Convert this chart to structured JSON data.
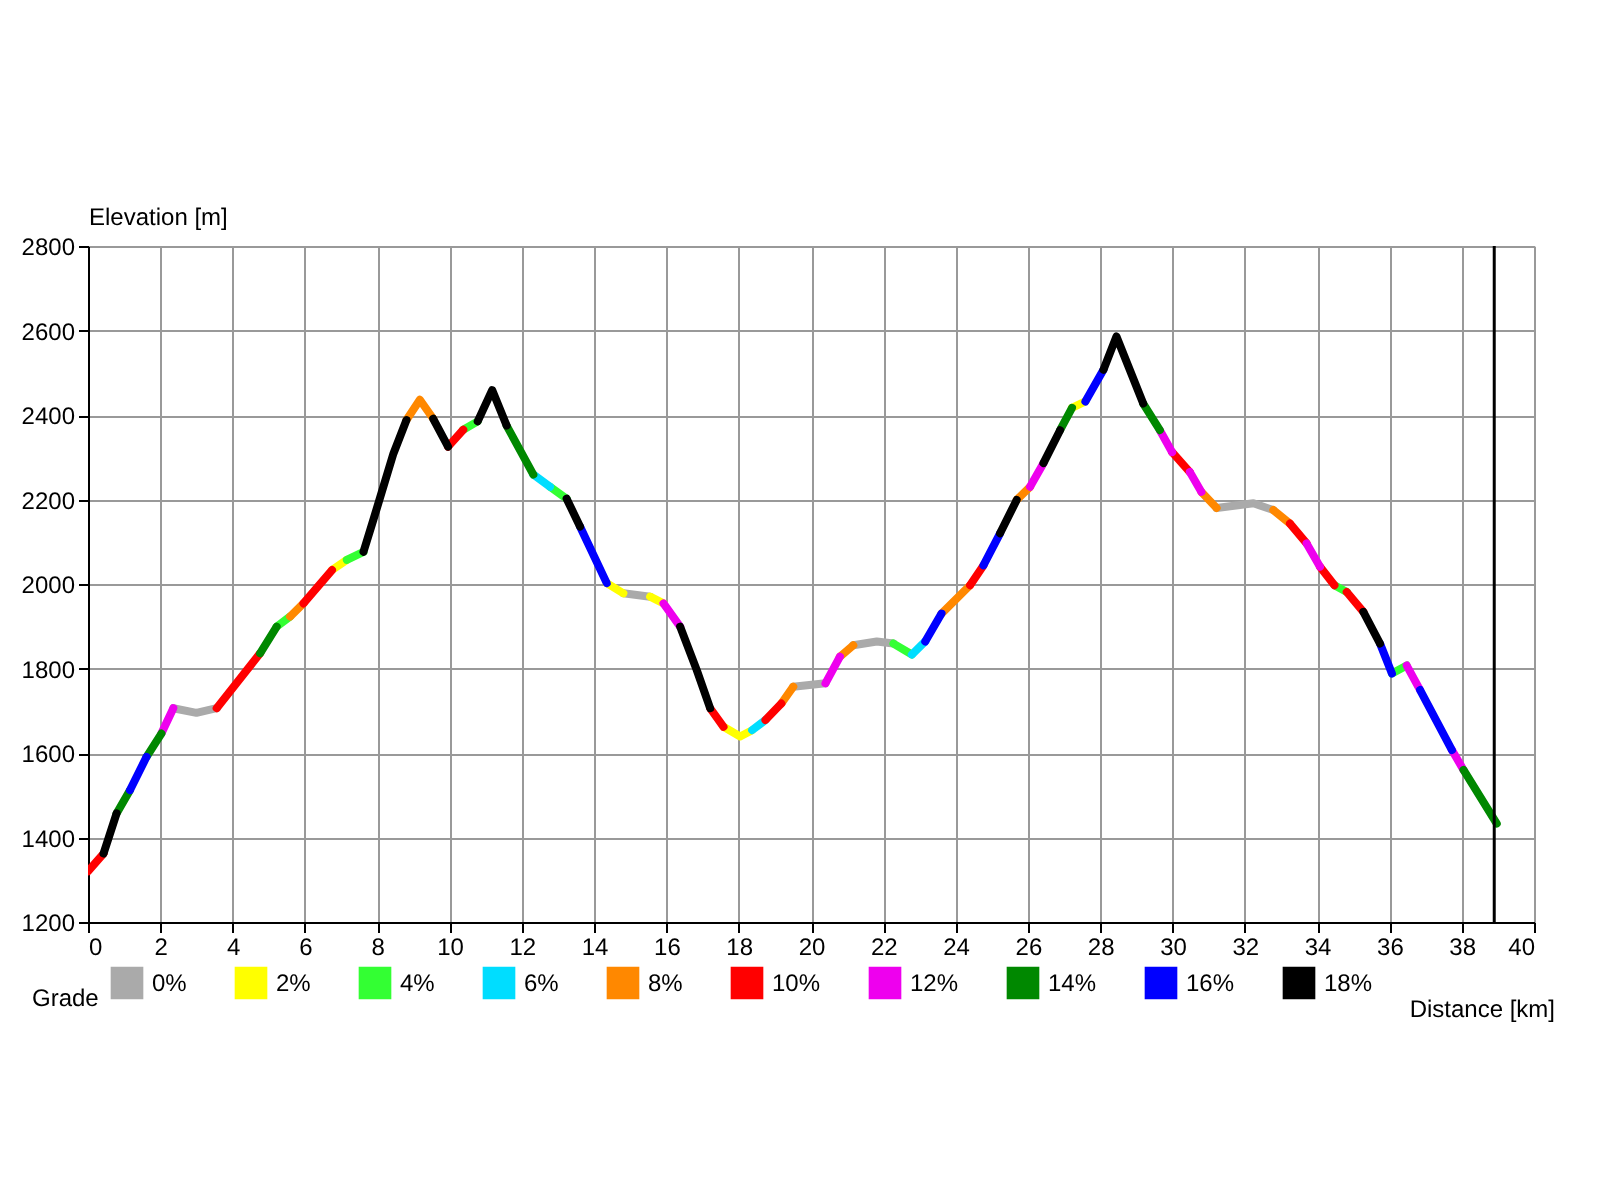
{
  "chart_data": {
    "type": "line",
    "xlabel": "Distance [km]",
    "ylabel": "Elevation [m]",
    "legend_title": "Grade",
    "xlim": [
      0,
      40
    ],
    "xticks": [
      0,
      2,
      4,
      6,
      8,
      10,
      12,
      14,
      16,
      18,
      20,
      22,
      24,
      26,
      28,
      30,
      32,
      34,
      36,
      38,
      40
    ],
    "ylim": [
      1200,
      2800
    ],
    "yticks": [
      1200,
      1400,
      1600,
      1800,
      2000,
      2200,
      2400,
      2600,
      2800
    ],
    "grid": true,
    "legend": "bottom",
    "marker": "none",
    "line_style": "solid",
    "ref_lines": [
      {
        "axis": "x",
        "value": 38.9,
        "color": "#000000"
      }
    ],
    "series": [
      {
        "name": "0%",
        "color": "#aaaaaa",
        "x": [
          2.36,
          3.0,
          3.56,
          null,
          14.81,
          15.55,
          null,
          19.51,
          20.4,
          null,
          21.17,
          21.82,
          22.28,
          null,
          31.22,
          32.24,
          32.79
        ],
        "values": [
          1706,
          1695,
          1706,
          null,
          1978,
          1970,
          null,
          1757,
          1765,
          null,
          1855,
          1864,
          1859,
          null,
          2180,
          2191,
          2175
        ]
      },
      {
        "name": "2%",
        "color": "#ffff00",
        "x": [
          6.75,
          7.16,
          null,
          14.35,
          14.81,
          null,
          15.55,
          15.92,
          null,
          17.58,
          18.04,
          18.37,
          null,
          27.22,
          27.59
        ],
        "values": [
          2033,
          2057,
          null,
          2002,
          1978,
          null,
          1970,
          1954,
          null,
          1662,
          1639,
          1654,
          null,
          2417,
          2432
        ]
      },
      {
        "name": "4%",
        "color": "#33ff33",
        "x": [
          5.22,
          5.59,
          null,
          7.16,
          7.62,
          null,
          10.38,
          10.78,
          null,
          12.78,
          13.24,
          null,
          22.28,
          22.79,
          null,
          34.48,
          34.82,
          null,
          36.07,
          36.48
        ],
        "values": [
          1899,
          1923,
          null,
          2057,
          2076,
          null,
          2365,
          2385,
          null,
          2230,
          2202,
          null,
          1859,
          1833,
          null,
          1997,
          1981,
          null,
          1788,
          1807
        ]
      },
      {
        "name": "6%",
        "color": "#00ddff",
        "x": [
          12.32,
          12.78,
          null,
          18.37,
          18.74,
          null,
          22.79,
          23.16
        ],
        "values": [
          2259,
          2230,
          null,
          1654,
          1678,
          null,
          1833,
          1864
        ]
      },
      {
        "name": "8%",
        "color": "#ff8800",
        "x": [
          5.59,
          5.96,
          null,
          8.81,
          9.18,
          9.55,
          null,
          19.18,
          19.51,
          null,
          20.8,
          21.17,
          null,
          23.61,
          24.4,
          null,
          25.69,
          26.06,
          null,
          30.8,
          31.22,
          null,
          32.79,
          33.25
        ],
        "values": [
          1923,
          1954,
          null,
          2388,
          2436,
          2391,
          null,
          1717,
          1757,
          null,
          1828,
          1855,
          null,
          1930,
          1997,
          null,
          2199,
          2230,
          null,
          2218,
          2180,
          null,
          2175,
          2143
        ]
      },
      {
        "name": "10%",
        "color": "#ff0000",
        "x": [
          0,
          0.43,
          null,
          3.56,
          4.76,
          null,
          5.96,
          6.75,
          null,
          9.96,
          10.38,
          null,
          17.21,
          17.58,
          null,
          18.74,
          19.18,
          null,
          24.4,
          24.77,
          null,
          29.99,
          30.48,
          null,
          33.25,
          33.71,
          null,
          34.08,
          34.48,
          null,
          34.82,
          35.28
        ],
        "values": [
          1320,
          1362,
          null,
          1706,
          1836,
          null,
          1954,
          2033,
          null,
          2325,
          2365,
          null,
          1706,
          1662,
          null,
          1678,
          1717,
          null,
          1997,
          2044,
          null,
          2312,
          2265,
          null,
          2143,
          2096,
          null,
          2041,
          1997,
          null,
          1981,
          1934
        ]
      },
      {
        "name": "12%",
        "color": "#ee00ee",
        "x": [
          2.03,
          2.36,
          null,
          15.92,
          16.38,
          null,
          20.4,
          20.8,
          null,
          26.06,
          26.43,
          null,
          29.65,
          29.99,
          null,
          30.48,
          30.8,
          null,
          33.71,
          34.08,
          null,
          36.48,
          36.85,
          null,
          37.73,
          38.05
        ],
        "values": [
          1646,
          1706,
          null,
          1954,
          1899,
          null,
          1765,
          1828,
          null,
          2230,
          2286,
          null,
          2364,
          2312,
          null,
          2265,
          2218,
          null,
          2096,
          2041,
          null,
          1807,
          1749,
          null,
          1607,
          1560
        ]
      },
      {
        "name": "14%",
        "color": "#008800",
        "x": [
          0.79,
          1.16,
          null,
          1.62,
          2.03,
          null,
          4.76,
          5.22,
          null,
          11.58,
          12.32,
          null,
          26.89,
          27.22,
          null,
          29.19,
          29.65,
          null,
          38.05,
          38.97
        ],
        "values": [
          1457,
          1512,
          null,
          1591,
          1646,
          null,
          1836,
          1899,
          null,
          2375,
          2259,
          null,
          2364,
          2417,
          null,
          2427,
          2364,
          null,
          1560,
          1433
        ]
      },
      {
        "name": "16%",
        "color": "#0000ff",
        "x": [
          1.16,
          1.62,
          null,
          13.61,
          14.35,
          null,
          23.16,
          23.61,
          null,
          24.77,
          25.23,
          null,
          27.59,
          28.09,
          null,
          35.74,
          36.07,
          null,
          36.85,
          37.73
        ],
        "values": [
          1512,
          1591,
          null,
          2136,
          2002,
          null,
          1864,
          1930,
          null,
          2044,
          2120,
          null,
          2432,
          2507,
          null,
          1859,
          1788,
          null,
          1749,
          1607
        ]
      },
      {
        "name": "18%",
        "color": "#000000",
        "x": [
          0.43,
          0.79,
          null,
          7.62,
          7.89,
          8.45,
          8.81,
          null,
          9.55,
          9.96,
          null,
          10.78,
          11.18,
          11.58,
          null,
          13.24,
          13.61,
          null,
          16.38,
          16.84,
          17.21,
          null,
          25.23,
          25.69,
          null,
          26.43,
          26.89,
          null,
          28.09,
          28.45,
          29.19,
          null,
          35.28,
          35.74
        ],
        "values": [
          1362,
          1457,
          null,
          2076,
          2151,
          2309,
          2388,
          null,
          2391,
          2325,
          null,
          2385,
          2459,
          2375,
          null,
          2202,
          2136,
          null,
          1899,
          1796,
          1706,
          null,
          2120,
          2199,
          null,
          2286,
          2364,
          null,
          2507,
          2586,
          2427,
          null,
          1934,
          1859
        ]
      }
    ]
  }
}
